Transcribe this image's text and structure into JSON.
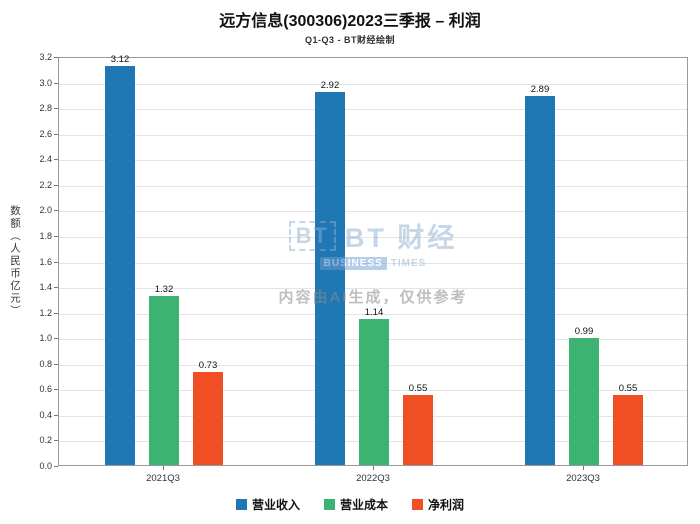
{
  "header": {
    "title": "远方信息(300306)2023三季报 – 利润",
    "subtitle": "Q1-Q3 - BT财经绘制"
  },
  "chart_data": {
    "type": "bar",
    "title": "远方信息(300306)2023三季报 – 利润",
    "subtitle": "Q1-Q3 - BT财经绘制",
    "categories": [
      "2021Q3",
      "2022Q3",
      "2023Q3"
    ],
    "series": [
      {
        "name": "营业收入",
        "color": "#1f77b4",
        "values": [
          3.12,
          2.92,
          2.89
        ]
      },
      {
        "name": "营业成本",
        "color": "#3cb371",
        "values": [
          1.32,
          1.14,
          0.99
        ]
      },
      {
        "name": "净利润",
        "color": "#f04e23",
        "values": [
          0.73,
          0.55,
          0.55
        ]
      }
    ],
    "xlabel": "",
    "ylabel": "数额（人民币亿元）",
    "ylim": [
      0,
      3.2
    ],
    "ytick_step": 0.2,
    "grid": true,
    "legend_position": "bottom",
    "value_labels": true
  },
  "watermark": {
    "logo_icon": "BT",
    "logo_main": "BT 财经",
    "logo_business": "BUSINESS",
    "logo_times": "TIMES",
    "ai_note": "内容由AI生成，仅供参考"
  }
}
